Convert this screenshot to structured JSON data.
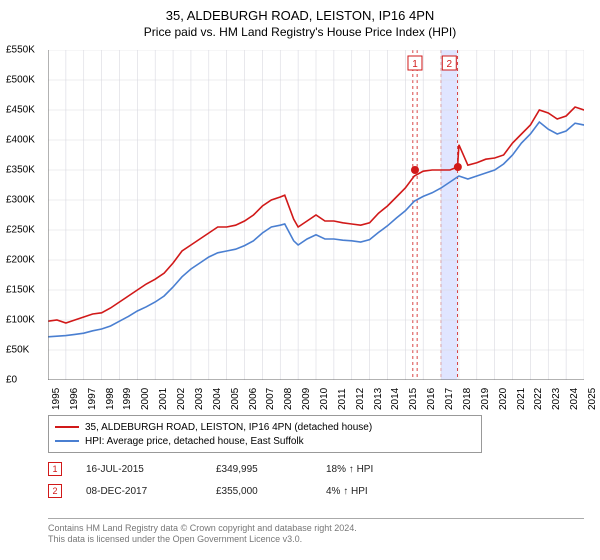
{
  "title": "35, ALDEBURGH ROAD, LEISTON, IP16 4PN",
  "subtitle": "Price paid vs. HM Land Registry's House Price Index (HPI)",
  "chart": {
    "type": "line",
    "background_color": "#ffffff",
    "grid_color": "#d9d9e0",
    "ylim": [
      0,
      550
    ],
    "ytick_step": 50,
    "ytick_labels": [
      "£0",
      "£50K",
      "£100K",
      "£150K",
      "£200K",
      "£250K",
      "£300K",
      "£350K",
      "£400K",
      "£450K",
      "£500K",
      "£550K"
    ],
    "xlim": [
      1995,
      2025
    ],
    "xtick_step": 1,
    "xtick_labels": [
      "1995",
      "1996",
      "1997",
      "1998",
      "1999",
      "2000",
      "2001",
      "2002",
      "2003",
      "2004",
      "2005",
      "2006",
      "2007",
      "2008",
      "2009",
      "2010",
      "2011",
      "2012",
      "2013",
      "2014",
      "2015",
      "2016",
      "2017",
      "2018",
      "2019",
      "2020",
      "2021",
      "2022",
      "2023",
      "2024",
      "2025"
    ],
    "line_width": 1.6,
    "series": [
      {
        "name": "35, ALDEBURGH ROAD, LEISTON, IP16 4PN (detached house)",
        "color": "#d11919",
        "x": [
          1995,
          1995.5,
          1996,
          1996.5,
          1997,
          1997.5,
          1998,
          1998.5,
          1999,
          1999.5,
          2000,
          2000.5,
          2001,
          2001.5,
          2002,
          2002.5,
          2003,
          2003.5,
          2004,
          2004.5,
          2005,
          2005.5,
          2006,
          2006.5,
          2007,
          2007.5,
          2008,
          2008.25,
          2008.75,
          2009,
          2009.5,
          2010,
          2010.5,
          2011,
          2011.5,
          2012,
          2012.5,
          2013,
          2013.5,
          2014,
          2014.5,
          2015,
          2015.5,
          2016,
          2016.5,
          2017,
          2017.5,
          2017.92,
          2018,
          2018.5,
          2019,
          2019.5,
          2020,
          2020.5,
          2021,
          2021.5,
          2022,
          2022.5,
          2023,
          2023.5,
          2024,
          2024.5,
          2025,
          2025.3
        ],
        "y": [
          98,
          100,
          95,
          100,
          105,
          110,
          112,
          120,
          130,
          140,
          150,
          160,
          168,
          178,
          195,
          215,
          225,
          235,
          245,
          255,
          255,
          258,
          265,
          275,
          290,
          300,
          305,
          308,
          268,
          255,
          265,
          275,
          265,
          265,
          262,
          260,
          258,
          262,
          278,
          290,
          305,
          320,
          340,
          348,
          350,
          350,
          350,
          355,
          392,
          358,
          362,
          368,
          370,
          375,
          395,
          410,
          425,
          450,
          445,
          435,
          440,
          455,
          450,
          445
        ]
      },
      {
        "name": "HPI: Average price, detached house, East Suffolk",
        "color": "#4a7fd1",
        "x": [
          1995,
          1995.5,
          1996,
          1996.5,
          1997,
          1997.5,
          1998,
          1998.5,
          1999,
          1999.5,
          2000,
          2000.5,
          2001,
          2001.5,
          2002,
          2002.5,
          2003,
          2003.5,
          2004,
          2004.5,
          2005,
          2005.5,
          2006,
          2006.5,
          2007,
          2007.5,
          2008,
          2008.25,
          2008.75,
          2009,
          2009.5,
          2010,
          2010.5,
          2011,
          2011.5,
          2012,
          2012.5,
          2013,
          2013.5,
          2014,
          2014.5,
          2015,
          2015.5,
          2016,
          2016.5,
          2017,
          2017.5,
          2018,
          2018.5,
          2019,
          2019.5,
          2020,
          2020.5,
          2021,
          2021.5,
          2022,
          2022.5,
          2023,
          2023.5,
          2024,
          2024.5,
          2025,
          2025.3
        ],
        "y": [
          72,
          73,
          74,
          76,
          78,
          82,
          85,
          90,
          98,
          106,
          115,
          122,
          130,
          140,
          155,
          172,
          185,
          195,
          205,
          212,
          215,
          218,
          224,
          232,
          245,
          255,
          258,
          260,
          232,
          225,
          235,
          242,
          235,
          235,
          233,
          232,
          230,
          234,
          246,
          257,
          270,
          282,
          298,
          306,
          312,
          320,
          330,
          340,
          335,
          340,
          345,
          350,
          360,
          375,
          395,
          410,
          430,
          418,
          410,
          415,
          428,
          425,
          428
        ]
      }
    ],
    "markers": [
      {
        "x": 2015.54,
        "y": 349.995,
        "color": "#d11919"
      },
      {
        "x": 2017.94,
        "y": 355.0,
        "color": "#d11919"
      }
    ],
    "marker_bands": [
      {
        "label": "1",
        "x_from": 2015.42,
        "x_to": 2015.66,
        "border_color": "#d11919",
        "fill": "#ffffff"
      },
      {
        "label": "2",
        "x_from": 2017.0,
        "x_to": 2017.92,
        "border_color": "#d11919",
        "fill": "#e0e5ff"
      }
    ],
    "label_fontsize": 10,
    "title_fontsize": 13
  },
  "legend": {
    "items": [
      {
        "color": "#d11919",
        "label": "35, ALDEBURGH ROAD, LEISTON, IP16 4PN (detached house)"
      },
      {
        "color": "#4a7fd1",
        "label": "HPI: Average price, detached house, East Suffolk"
      }
    ]
  },
  "sales": [
    {
      "badge": "1",
      "badge_color": "#d11919",
      "date": "16-JUL-2015",
      "price": "£349,995",
      "delta": "18% ↑ HPI"
    },
    {
      "badge": "2",
      "badge_color": "#d11919",
      "date": "08-DEC-2017",
      "price": "£355,000",
      "delta": "4% ↑ HPI"
    }
  ],
  "footer_line1": "Contains HM Land Registry data © Crown copyright and database right 2024.",
  "footer_line2": "This data is licensed under the Open Government Licence v3.0."
}
